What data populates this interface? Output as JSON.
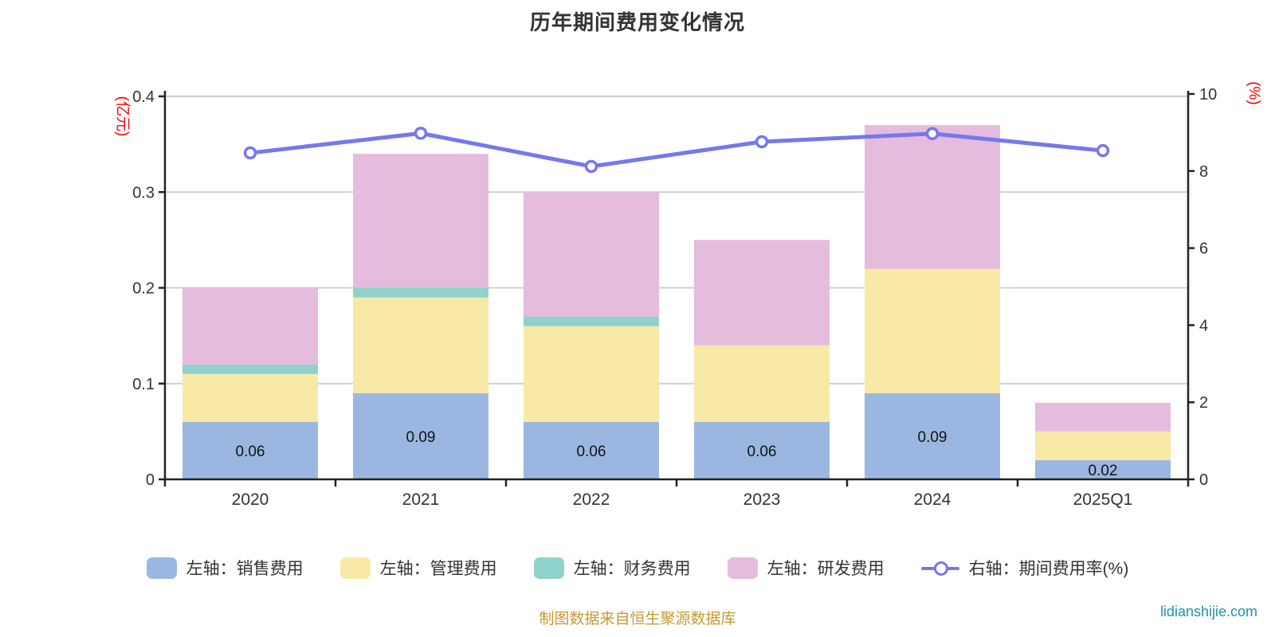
{
  "chart_data": {
    "type": "bar",
    "subtype": "stacked-bar-with-line",
    "title": "历年期间费用变化情况",
    "categories": [
      "2020",
      "2021",
      "2022",
      "2023",
      "2024",
      "2025Q1"
    ],
    "left_axis": {
      "unit": "(亿元)",
      "unit_color": "#ff0000",
      "min": 0,
      "max": 0.4,
      "ticks": [
        "0",
        "0.1",
        "0.2",
        "0.3",
        "0.4"
      ]
    },
    "right_axis": {
      "unit": "(%)",
      "unit_color": "#ff0000",
      "min": 0,
      "max": 10,
      "ticks": [
        "0",
        "2",
        "4",
        "6",
        "8",
        "10"
      ]
    },
    "grid": true,
    "legend_position": "bottom",
    "series": [
      {
        "name": "左轴：销售费用",
        "type": "bar",
        "axis": "left",
        "color": "#9bb7e1",
        "values": [
          0.06,
          0.09,
          0.06,
          0.06,
          0.09,
          0.02
        ],
        "labels": [
          "0.06",
          "0.09",
          "0.06",
          "0.06",
          "0.09",
          "0.02"
        ]
      },
      {
        "name": "左轴：管理费用",
        "type": "bar",
        "axis": "left",
        "color": "#f8e9a7",
        "values": [
          0.05,
          0.1,
          0.1,
          0.08,
          0.13,
          0.03
        ]
      },
      {
        "name": "左轴：财务费用",
        "type": "bar",
        "axis": "left",
        "color": "#8fd2cb",
        "values": [
          0.01,
          0.01,
          0.01,
          0,
          0,
          0
        ]
      },
      {
        "name": "左轴：研发费用",
        "type": "bar",
        "axis": "left",
        "color": "#e5bcdd",
        "values": [
          0.08,
          0.14,
          0.13,
          0.11,
          0.15,
          0.03
        ]
      },
      {
        "name": "右轴：期间费用率(%)",
        "type": "line",
        "axis": "right",
        "color": "#7678ea",
        "values": [
          8.47,
          8.98,
          8.12,
          8.76,
          8.97,
          8.53
        ]
      }
    ]
  },
  "footer": {
    "source_note": "制图数据来自恒生聚源数据库",
    "watermark": "lidianshijie.com"
  },
  "colors": {
    "title": "#333333",
    "axis_line": "#222222",
    "tick_label": "#333333",
    "gridline": "#d0d0d0",
    "bar_value_label": "#111111",
    "source_note": "#c59a32",
    "watermark": "#1e92a8",
    "axis_unit": "#ff0000"
  }
}
